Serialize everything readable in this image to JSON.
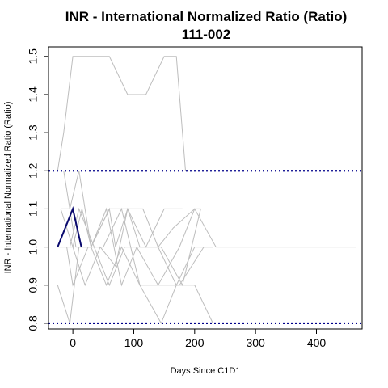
{
  "chart_data": {
    "type": "line",
    "title": "INR - International Normalized Ratio (Ratio)",
    "subtitle": "111-002",
    "xlabel": "Days Since C1D1",
    "ylabel": "INR - International Normalized Ratio (Ratio)",
    "xlim": [
      -40,
      475
    ],
    "ylim": [
      0.785,
      1.525
    ],
    "x_ticks": [
      0,
      100,
      200,
      300,
      400
    ],
    "y_ticks": [
      0.8,
      0.9,
      1.0,
      1.1,
      1.2,
      1.3,
      1.4,
      1.5
    ],
    "x_tick_labels": [
      "0",
      "100",
      "200",
      "300",
      "400"
    ],
    "y_tick_labels": [
      "0.8",
      "0.9",
      "1.0",
      "1.1",
      "1.2",
      "1.3",
      "1.4",
      "1.5"
    ],
    "reference_lines": [
      {
        "y": 1.2,
        "style": "dotted",
        "color": "#00008b"
      },
      {
        "y": 0.8,
        "style": "dotted",
        "color": "#00008b"
      }
    ],
    "highlight_color": "#0a0a6e",
    "background_color": "#bdbdbd",
    "highlight_series": {
      "name": "111-002",
      "x": [
        -25,
        0,
        14
      ],
      "y": [
        1.0,
        1.1,
        1.0
      ]
    },
    "background_series": [
      {
        "x": [
          -25,
          -15,
          0,
          15,
          30,
          60,
          90,
          120,
          150,
          170,
          185
        ],
        "y": [
          1.2,
          1.3,
          1.5,
          1.5,
          1.5,
          1.5,
          1.4,
          1.4,
          1.5,
          1.5,
          1.2
        ]
      },
      {
        "x": [
          -20,
          -5,
          10,
          30,
          60,
          90,
          120,
          150,
          180
        ],
        "y": [
          1.1,
          1.1,
          1.2,
          1.0,
          1.1,
          1.1,
          1.0,
          1.1,
          1.1
        ]
      },
      {
        "x": [
          -25,
          0,
          15,
          30,
          60,
          70,
          90,
          110,
          140,
          170,
          200,
          230
        ],
        "y": [
          1.0,
          1.0,
          1.1,
          1.0,
          1.1,
          1.0,
          1.1,
          1.0,
          1.0,
          0.9,
          1.0,
          1.0
        ]
      },
      {
        "x": [
          -25,
          -5,
          10,
          30,
          55,
          80,
          110,
          145,
          170,
          200,
          230
        ],
        "y": [
          0.9,
          0.8,
          1.0,
          1.0,
          0.9,
          1.0,
          0.9,
          0.8,
          0.9,
          0.9,
          0.8
        ]
      },
      {
        "x": [
          -10,
          0,
          25,
          50,
          80,
          110,
          140,
          175,
          200,
          235,
          300,
          400,
          465
        ],
        "y": [
          1.0,
          0.9,
          1.0,
          1.0,
          1.1,
          0.9,
          0.9,
          1.0,
          1.1,
          1.0,
          1.0,
          1.0,
          1.0
        ]
      },
      {
        "x": [
          -20,
          0,
          20,
          45,
          70,
          90,
          115,
          140,
          165,
          200,
          210
        ],
        "y": [
          1.1,
          1.0,
          0.9,
          1.0,
          0.95,
          1.1,
          1.1,
          1.0,
          1.05,
          1.1,
          1.1
        ]
      },
      {
        "x": [
          -15,
          5,
          30,
          55,
          80,
          105,
          140,
          175,
          215,
          230
        ],
        "y": [
          1.2,
          1.0,
          1.0,
          1.1,
          0.9,
          1.0,
          0.9,
          0.9,
          1.0,
          1.0
        ]
      },
      {
        "x": [
          -5,
          10,
          35,
          60,
          85,
          115,
          145,
          180,
          210
        ],
        "y": [
          1.0,
          1.1,
          1.0,
          0.9,
          1.0,
          1.0,
          1.0,
          0.9,
          1.1
        ]
      }
    ]
  }
}
